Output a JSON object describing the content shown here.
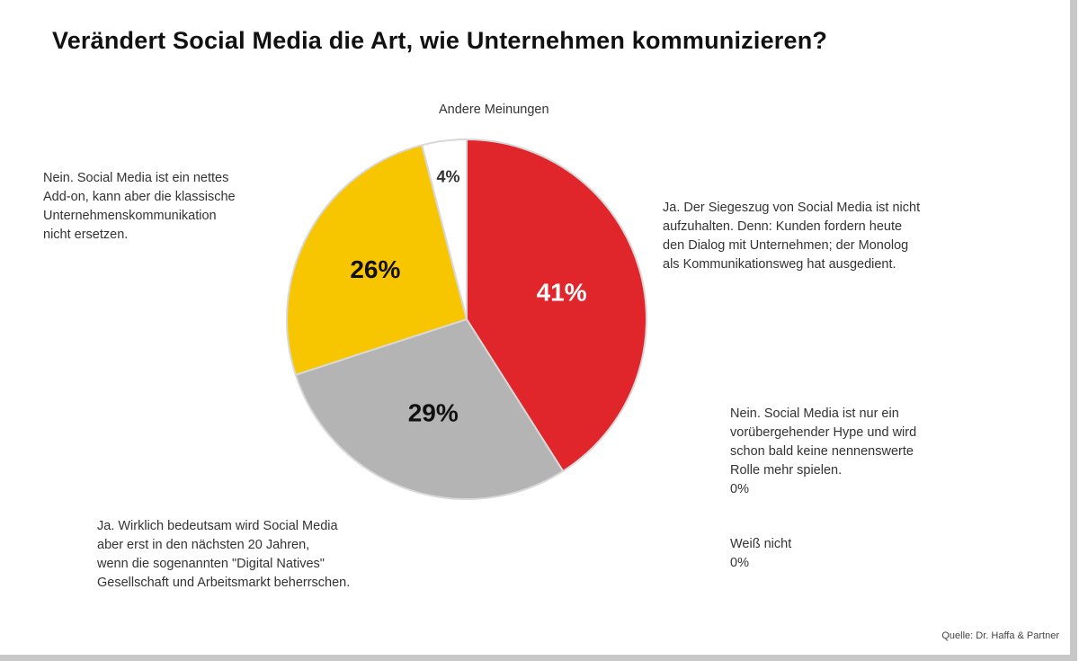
{
  "chart_data": {
    "type": "pie",
    "title": "Verändert Social Media die Art, wie Unternehmen kommunizieren?",
    "slices": [
      {
        "label": [
          "Ja. Der Siegeszug von Social Media ist nicht",
          "aufzuhalten. Denn: Kunden fordern heute",
          "den Dialog mit Unternehmen; der Monolog",
          "als Kommunikationsweg hat ausgedient."
        ],
        "value": 41,
        "value_label": "41%",
        "color": "#e0252b",
        "text_color": "#ffffff"
      },
      {
        "label": [
          "Ja. Wirklich bedeutsam wird Social Media",
          "aber erst in den nächsten 20 Jahren,",
          "wenn die sogenannten \"Digital Natives\"",
          "Gesellschaft und Arbeitsmarkt beherrschen."
        ],
        "value": 29,
        "value_label": "29%",
        "color": "#b4b4b4",
        "text_color": "#111111"
      },
      {
        "label": [
          "Nein. Social Media ist ein nettes",
          "Add-on, kann aber die klassische",
          "Unternehmenskommunikation",
          "nicht ersetzen."
        ],
        "value": 26,
        "value_label": "26%",
        "color": "#f7c600",
        "text_color": "#111111"
      },
      {
        "label": [
          "Andere Meinungen"
        ],
        "value": 4,
        "value_label": "4%",
        "color": "#ffffff",
        "text_color": "#333333"
      }
    ],
    "zero_entries": [
      {
        "label": [
          "Nein. Social Media ist nur ein",
          "vorübergehender Hype und wird",
          "schon bald keine nennenswerte",
          "Rolle mehr spielen."
        ],
        "value": 0,
        "value_label": "0%"
      },
      {
        "label": [
          "Weiß nicht"
        ],
        "value": 0,
        "value_label": "0%"
      }
    ],
    "source": "Quelle: Dr. Haffa & Partner"
  }
}
